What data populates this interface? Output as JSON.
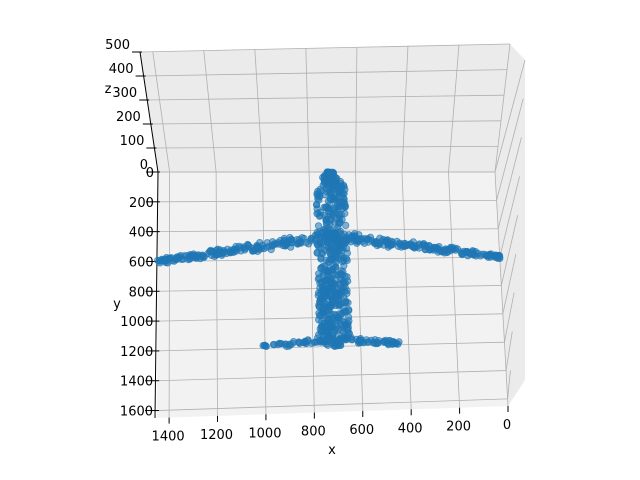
{
  "chart_data": {
    "type": "scatter",
    "projection": "3d",
    "title": "",
    "xlabel": "x",
    "ylabel": "y",
    "zlabel": "z",
    "x_ticks": [
      1400,
      1200,
      1000,
      800,
      600,
      400,
      200,
      0
    ],
    "y_ticks": [
      0,
      200,
      400,
      600,
      800,
      1000,
      1200,
      1400,
      1600
    ],
    "z_ticks": [
      0,
      100,
      200,
      300,
      400,
      500
    ],
    "xlim": [
      0,
      1450
    ],
    "ylim": [
      0,
      1650
    ],
    "zlim": [
      0,
      500
    ],
    "grid": true,
    "color": "#1f77b4",
    "series": [
      {
        "shape_parts": [
          {
            "part": "fuselage",
            "x_range": [
              640,
              780
            ],
            "y_range": [
              0,
              1200
            ]
          },
          {
            "part": "main-wings",
            "x_range": [
              0,
              1450
            ],
            "y_range": [
              400,
              650
            ]
          },
          {
            "part": "tail-plane",
            "x_range": [
              440,
              1010
            ],
            "y_range": [
              1050,
              1200
            ]
          }
        ],
        "x": [
          710,
          700,
          720,
          690,
          730,
          705,
          715,
          695,
          725,
          710,
          700,
          720,
          712,
          705,
          718,
          708,
          702,
          716,
          706,
          714,
          1440,
          1380,
          1320,
          1260,
          1200,
          1140,
          1080,
          1020,
          960,
          900,
          840,
          780,
          640,
          580,
          520,
          460,
          400,
          340,
          280,
          220,
          160,
          100,
          40,
          0,
          1000,
          940,
          880,
          820,
          780,
          640,
          600,
          540,
          480,
          440
        ],
        "y": [
          40,
          120,
          200,
          280,
          360,
          440,
          520,
          600,
          680,
          760,
          840,
          920,
          1000,
          1080,
          1160,
          1200,
          300,
          500,
          700,
          900,
          610,
          600,
          590,
          575,
          560,
          545,
          530,
          515,
          500,
          490,
          480,
          470,
          470,
          480,
          490,
          500,
          515,
          530,
          545,
          560,
          575,
          590,
          600,
          610,
          1180,
          1170,
          1160,
          1150,
          1140,
          1140,
          1150,
          1160,
          1170,
          1180
        ],
        "z": [
          0,
          0,
          0,
          0,
          0,
          0,
          0,
          0,
          0,
          0,
          0,
          0,
          0,
          0,
          0,
          0,
          0,
          0,
          0,
          0,
          0,
          0,
          0,
          0,
          0,
          0,
          0,
          0,
          0,
          0,
          0,
          0,
          0,
          0,
          0,
          0,
          0,
          0,
          0,
          0,
          0,
          0,
          0,
          0,
          0,
          0,
          0,
          0,
          0,
          0,
          0,
          0,
          0,
          0
        ]
      }
    ]
  }
}
